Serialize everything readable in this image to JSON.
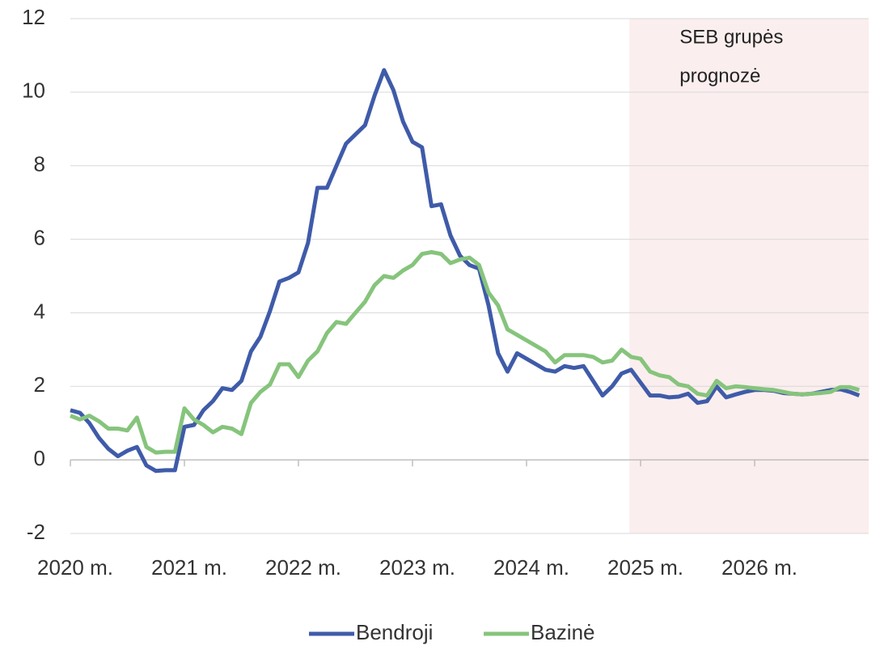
{
  "chart_data": {
    "type": "line",
    "categories": [
      "2020 m.",
      null,
      null,
      null,
      null,
      null,
      null,
      null,
      null,
      null,
      null,
      null,
      "2021 m.",
      null,
      null,
      null,
      null,
      null,
      null,
      null,
      null,
      null,
      null,
      null,
      "2022 m.",
      null,
      null,
      null,
      null,
      null,
      null,
      null,
      null,
      null,
      null,
      null,
      "2023 m.",
      null,
      null,
      null,
      null,
      null,
      null,
      null,
      null,
      null,
      null,
      null,
      "2024 m.",
      null,
      null,
      null,
      null,
      null,
      null,
      null,
      null,
      null,
      null,
      null,
      "2025 m.",
      null,
      null,
      null,
      null,
      null,
      null,
      null,
      null,
      null,
      null,
      null,
      "2026 m.",
      null,
      null,
      null,
      null,
      null,
      null,
      null,
      null,
      null,
      null,
      null
    ],
    "series": [
      {
        "name": "Bendroji",
        "color": "#3f5ba9",
        "values": [
          1.35,
          1.28,
          1.0,
          0.6,
          0.3,
          0.1,
          0.25,
          0.35,
          -0.15,
          -0.3,
          -0.28,
          -0.28,
          0.9,
          0.95,
          1.35,
          1.6,
          1.95,
          1.9,
          2.15,
          2.95,
          3.35,
          4.05,
          4.85,
          4.95,
          5.1,
          5.9,
          7.4,
          7.4,
          8.0,
          8.6,
          8.85,
          9.1,
          9.9,
          10.6,
          10.05,
          9.2,
          8.65,
          8.5,
          6.9,
          6.95,
          6.1,
          5.55,
          5.3,
          5.2,
          4.2,
          2.9,
          2.4,
          2.9,
          2.75,
          2.6,
          2.45,
          2.4,
          2.55,
          2.5,
          2.55,
          2.15,
          1.75,
          2.0,
          2.35,
          2.45,
          2.1,
          1.75,
          1.75,
          1.7,
          1.72,
          1.8,
          1.55,
          1.6,
          2.0,
          1.7,
          1.78,
          1.85,
          1.9,
          1.9,
          1.88,
          1.82,
          1.8,
          1.78,
          1.8,
          1.85,
          1.9,
          1.92,
          1.85,
          1.75
        ]
      },
      {
        "name": "Bazinė",
        "color": "#86c47c",
        "values": [
          1.2,
          1.1,
          1.2,
          1.05,
          0.85,
          0.85,
          0.8,
          1.15,
          0.35,
          0.2,
          0.22,
          0.22,
          1.4,
          1.1,
          0.95,
          0.75,
          0.9,
          0.85,
          0.7,
          1.55,
          1.85,
          2.05,
          2.6,
          2.6,
          2.25,
          2.7,
          2.95,
          3.45,
          3.75,
          3.7,
          4.0,
          4.3,
          4.75,
          5.0,
          4.95,
          5.15,
          5.3,
          5.6,
          5.65,
          5.6,
          5.35,
          5.45,
          5.5,
          5.3,
          4.55,
          4.2,
          3.55,
          3.4,
          3.25,
          3.1,
          2.95,
          2.65,
          2.85,
          2.85,
          2.85,
          2.8,
          2.65,
          2.7,
          3.0,
          2.8,
          2.75,
          2.4,
          2.3,
          2.25,
          2.05,
          2.0,
          1.8,
          1.75,
          2.15,
          1.95,
          2.0,
          1.98,
          1.95,
          1.92,
          1.9,
          1.85,
          1.8,
          1.78,
          1.8,
          1.82,
          1.85,
          1.98,
          1.98,
          1.9
        ]
      }
    ],
    "ylim": [
      -2,
      12
    ],
    "yticks": [
      -2,
      0,
      2,
      4,
      6,
      8,
      10,
      12
    ],
    "grid": true,
    "legend": "bottom",
    "forecast": {
      "lines": [
        "SEB grupės",
        "prognozė"
      ],
      "from": 59,
      "color": "#fbeeee"
    }
  }
}
